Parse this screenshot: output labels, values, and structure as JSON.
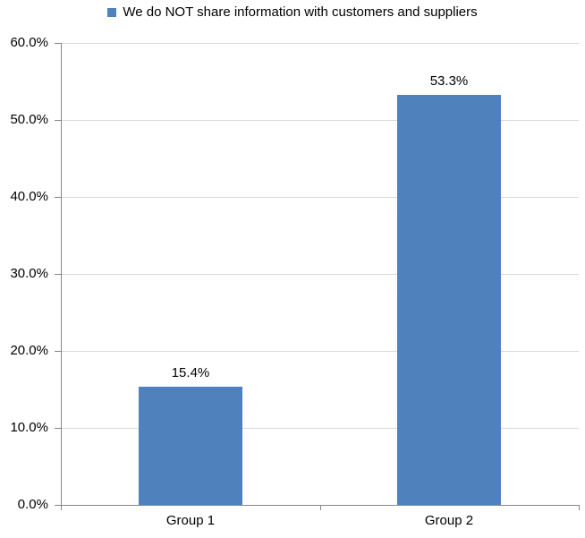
{
  "legend": {
    "label": "We do NOT share information with customers and suppliers"
  },
  "chart_data": {
    "type": "bar",
    "title": "",
    "xlabel": "",
    "ylabel": "",
    "categories": [
      "Group 1",
      "Group 2"
    ],
    "series": [
      {
        "name": "We do NOT share information with customers and suppliers",
        "values": [
          15.4,
          53.3
        ]
      }
    ],
    "value_labels": [
      "15.4%",
      "53.3%"
    ],
    "ylim": [
      0,
      60
    ],
    "ytick_step": 10,
    "ytick_labels": [
      "0.0%",
      "10.0%",
      "20.0%",
      "30.0%",
      "40.0%",
      "50.0%",
      "60.0%"
    ],
    "grid": true,
    "legend_position": "top",
    "colors": {
      "bar": "#4F81BD",
      "gridline": "#D9D9D9",
      "axis": "#868686",
      "text": "#000000",
      "background": "#FFFFFF"
    }
  }
}
